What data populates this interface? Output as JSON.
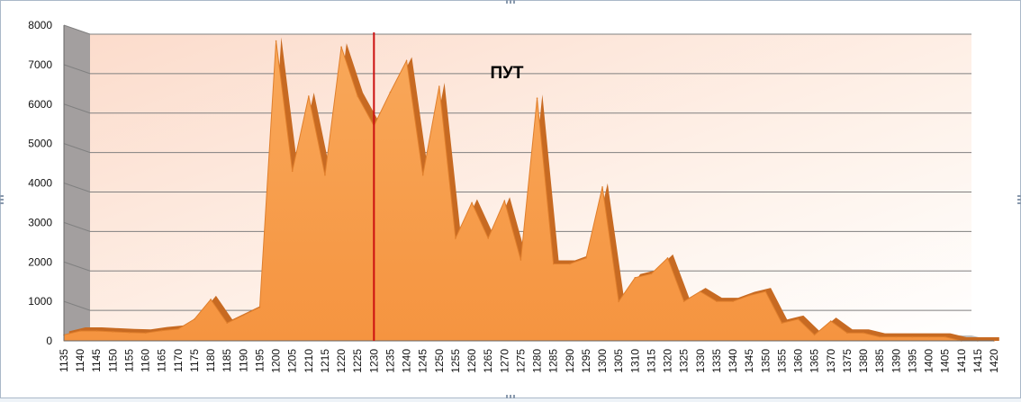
{
  "chart_data": {
    "type": "area",
    "title": "ПУТ",
    "xlabel": "",
    "ylabel": "",
    "ylim": [
      0,
      8000
    ],
    "yticks": [
      0,
      1000,
      2000,
      3000,
      4000,
      5000,
      6000,
      7000,
      8000
    ],
    "grid": true,
    "legend": "none",
    "marker_line_x": 1230,
    "x": [
      1135,
      1140,
      1145,
      1150,
      1155,
      1160,
      1165,
      1170,
      1175,
      1180,
      1185,
      1190,
      1195,
      1200,
      1205,
      1210,
      1215,
      1220,
      1225,
      1230,
      1235,
      1240,
      1245,
      1250,
      1255,
      1260,
      1265,
      1270,
      1275,
      1280,
      1285,
      1290,
      1295,
      1300,
      1305,
      1310,
      1315,
      1320,
      1325,
      1330,
      1335,
      1340,
      1345,
      1350,
      1355,
      1360,
      1365,
      1370,
      1375,
      1380,
      1385,
      1390,
      1395,
      1400,
      1405,
      1410,
      1415,
      1420
    ],
    "series": [
      {
        "values": [
          150,
          250,
          250,
          230,
          210,
          200,
          260,
          300,
          550,
          1050,
          450,
          650,
          850,
          7600,
          4300,
          6200,
          4200,
          7450,
          6200,
          5450,
          6300,
          7100,
          4200,
          6450,
          2600,
          3500,
          2600,
          3550,
          2050,
          6150,
          1950,
          1950,
          2100,
          3900,
          1000,
          1600,
          1700,
          2100,
          1000,
          1250,
          1000,
          1000,
          1150,
          1250,
          450,
          550,
          150,
          500,
          200,
          200,
          100,
          100,
          100,
          100,
          100,
          0,
          0,
          0
        ]
      }
    ],
    "colors": {
      "area_fill": "#f7a04e",
      "area_shadow": "#c76a22",
      "wall": "#a39f9f",
      "plot_bg": "#fde9dc",
      "gridline": "#808080",
      "marker_line": "#cc1010"
    }
  }
}
